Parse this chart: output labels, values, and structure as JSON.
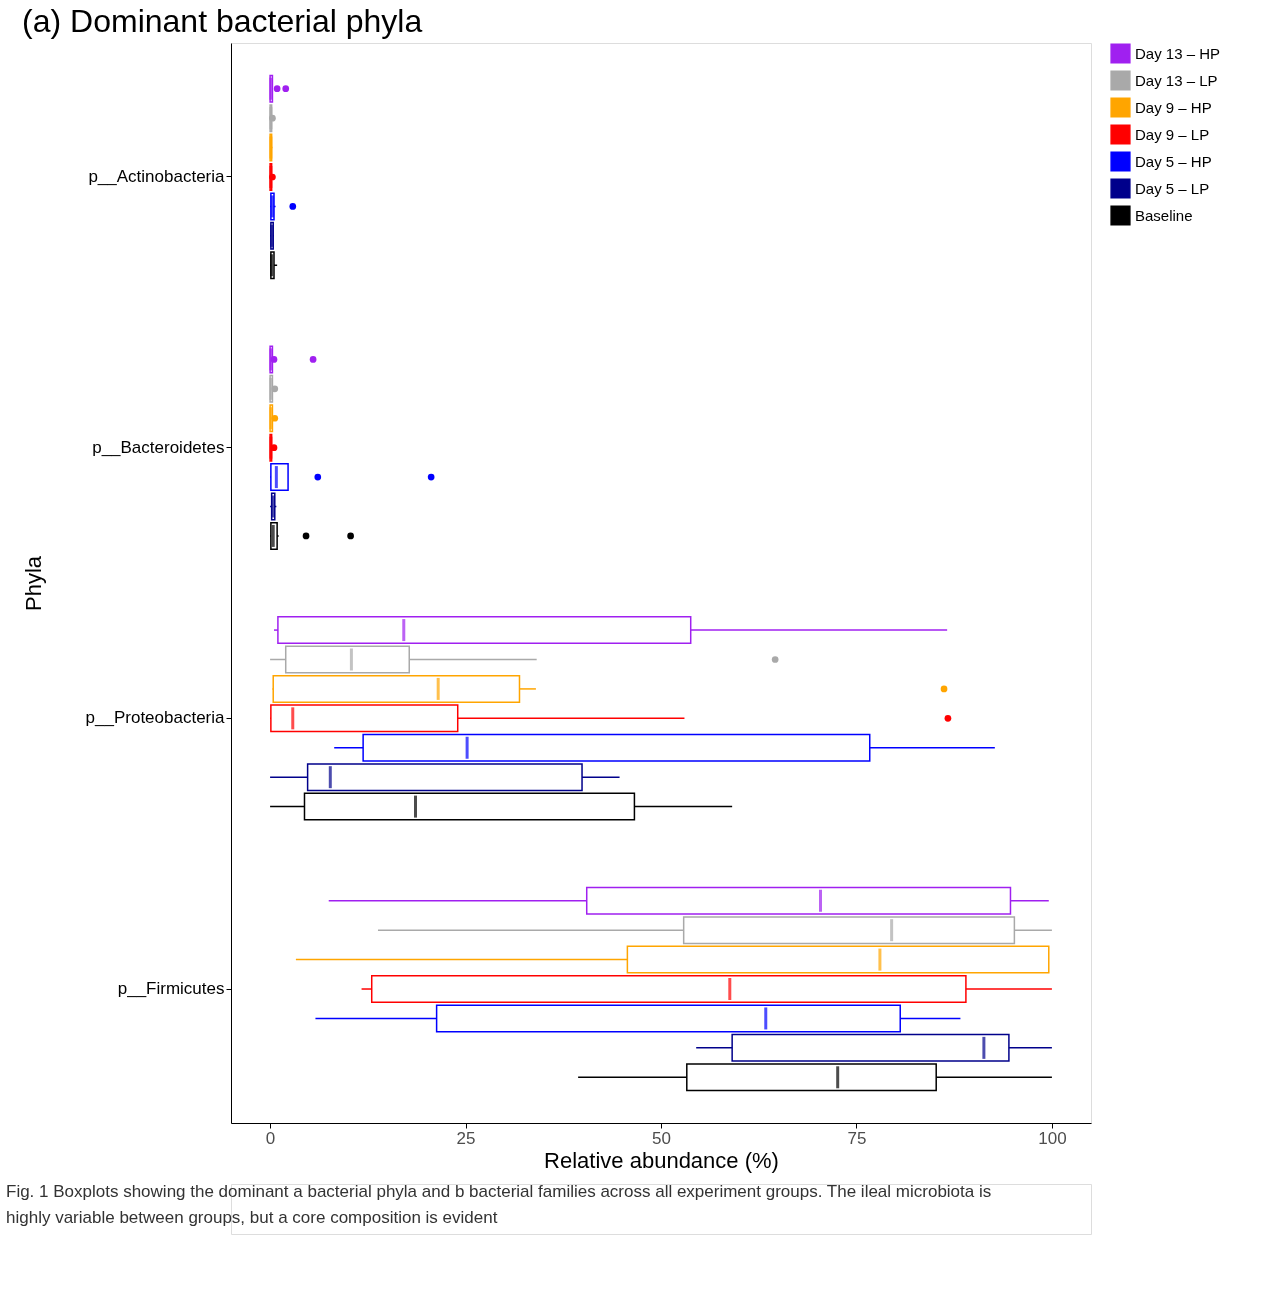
{
  "chart_data": {
    "type": "box",
    "orientation": "horizontal",
    "title": "(a) Dominant bacterial phyla",
    "xlabel": "Relative abundance (%)",
    "ylabel": "Phyla",
    "categories": [
      "p__Actinobacteria",
      "p__Bacteroidetes",
      "p__Proteobacteria",
      "p__Firmicutes"
    ],
    "xlim": [
      -5,
      105
    ],
    "xticks": [
      0,
      25,
      50,
      75,
      100
    ],
    "grid": false,
    "legend": "right",
    "series": [
      {
        "name": "Day 13 – HP",
        "color": "#a020f0",
        "boxes": [
          {
            "low": 0,
            "q1": 0,
            "median": 0.1,
            "q3": 0.3,
            "high": 0.3,
            "outliers": [
              0.9,
              2.0
            ]
          },
          {
            "low": 0,
            "q1": 0,
            "median": 0.1,
            "q3": 0.3,
            "high": 0.4,
            "outliers": [
              0.5,
              5.5
            ]
          },
          {
            "low": 0.5,
            "q1": 1.0,
            "median": 17.1,
            "q3": 53.8,
            "high": 86.6
          },
          {
            "low": 7.5,
            "q1": 40.5,
            "median": 70.4,
            "q3": 94.7,
            "high": 99.6
          }
        ]
      },
      {
        "name": "Day 13 – LP",
        "color": "#a9a9a9",
        "boxes": [
          {
            "low": 0,
            "q1": 0,
            "median": 0.1,
            "q3": 0.2,
            "high": 0.2,
            "outliers": [
              0.3
            ]
          },
          {
            "low": 0,
            "q1": 0,
            "median": 0.1,
            "q3": 0.3,
            "high": 0.4,
            "outliers": [
              0.6
            ]
          },
          {
            "low": 0,
            "q1": 2.0,
            "median": 10.4,
            "q3": 17.8,
            "high": 34.1,
            "outliers": [
              64.6
            ]
          },
          {
            "low": 13.8,
            "q1": 52.9,
            "median": 79.5,
            "q3": 95.2,
            "high": 100
          }
        ]
      },
      {
        "name": "Day 9 – HP",
        "color": "#ffa500",
        "boxes": [
          {
            "low": 0,
            "q1": 0,
            "median": 0.1,
            "q3": 0.2,
            "high": 0.3
          },
          {
            "low": 0,
            "q1": 0,
            "median": 0.1,
            "q3": 0.3,
            "high": 0.4,
            "outliers": [
              0.6
            ]
          },
          {
            "low": 0.3,
            "q1": 0.4,
            "median": 21.5,
            "q3": 31.9,
            "high": 34.0,
            "outliers": [
              86.2
            ]
          },
          {
            "low": 3.3,
            "q1": 45.7,
            "median": 78.0,
            "q3": 99.6,
            "high": 99.6
          }
        ]
      },
      {
        "name": "Day 9 – LP",
        "color": "#ff0000",
        "boxes": [
          {
            "low": 0,
            "q1": 0,
            "median": 0.1,
            "q3": 0.2,
            "high": 0.2,
            "outliers": [
              0.3
            ]
          },
          {
            "low": 0,
            "q1": 0,
            "median": 0.1,
            "q3": 0.2,
            "high": 0.3,
            "outliers": [
              0.5
            ]
          },
          {
            "low": 0,
            "q1": 0.1,
            "median": 2.9,
            "q3": 24.0,
            "high": 53.0,
            "outliers": [
              86.7
            ]
          },
          {
            "low": 11.7,
            "q1": 13.0,
            "median": 58.8,
            "q3": 89.0,
            "high": 100
          }
        ]
      },
      {
        "name": "Day 5 – HP",
        "color": "#0000ff",
        "boxes": [
          {
            "low": 0,
            "q1": 0.1,
            "median": 0.3,
            "q3": 0.5,
            "high": 0.7,
            "outliers": [
              2.9
            ]
          },
          {
            "low": 0,
            "q1": 0.1,
            "median": 0.8,
            "q3": 2.3,
            "high": 2.3,
            "outliers": [
              6.1,
              20.6
            ]
          },
          {
            "low": 8.2,
            "q1": 11.9,
            "median": 25.2,
            "q3": 76.7,
            "high": 92.7
          },
          {
            "low": 5.8,
            "q1": 21.3,
            "median": 63.4,
            "q3": 80.6,
            "high": 88.3
          }
        ]
      },
      {
        "name": "Day 5 – LP",
        "color": "#00008b",
        "boxes": [
          {
            "low": 0,
            "q1": 0.1,
            "median": 0.2,
            "q3": 0.4,
            "high": 0.5
          },
          {
            "low": 0,
            "q1": 0.2,
            "median": 0.4,
            "q3": 0.6,
            "high": 0.8
          },
          {
            "low": 0,
            "q1": 4.8,
            "median": 7.7,
            "q3": 39.9,
            "high": 44.7
          },
          {
            "low": 54.5,
            "q1": 59.1,
            "median": 91.3,
            "q3": 94.5,
            "high": 100
          }
        ]
      },
      {
        "name": "Baseline",
        "color": "#000000",
        "boxes": [
          {
            "low": 0,
            "q1": 0.1,
            "median": 0.2,
            "q3": 0.5,
            "high": 0.9
          },
          {
            "low": 0,
            "q1": 0.1,
            "median": 0.4,
            "q3": 0.9,
            "high": 1.1,
            "outliers": [
              4.6,
              10.3
            ]
          },
          {
            "low": 0,
            "q1": 4.4,
            "median": 18.6,
            "q3": 46.6,
            "high": 59.1
          },
          {
            "low": 39.4,
            "q1": 53.3,
            "median": 72.6,
            "q3": 85.2,
            "high": 100
          }
        ]
      }
    ],
    "annotations": [
      "Fig. 1 Boxplots showing the dominant a bacterial phyla and b bacterial families across all experiment groups. The ileal microbiota is highly variable between groups, but a core composition is evident"
    ]
  }
}
